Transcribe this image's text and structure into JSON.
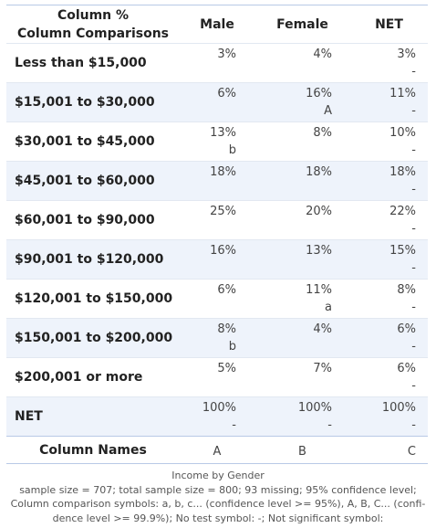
{
  "header": {
    "corner_line1": "Column %",
    "corner_line2": "Column Comparisons",
    "col_male": "Male",
    "col_female": "Female",
    "col_net": "NET"
  },
  "rows": [
    {
      "label": "Less than $15,000",
      "male": "3%",
      "male_sig": "",
      "female": "4%",
      "female_sig": "",
      "net": "3%",
      "net_sig": "-"
    },
    {
      "label": "$15,001 to $30,000",
      "male": "6%",
      "male_sig": "",
      "female": "16%",
      "female_sig": "A",
      "net": "11%",
      "net_sig": "-"
    },
    {
      "label": "$30,001 to $45,000",
      "male": "13%",
      "male_sig": "b",
      "female": "8%",
      "female_sig": "",
      "net": "10%",
      "net_sig": "-"
    },
    {
      "label": "$45,001 to $60,000",
      "male": "18%",
      "male_sig": "",
      "female": "18%",
      "female_sig": "",
      "net": "18%",
      "net_sig": "-"
    },
    {
      "label": "$60,001 to $90,000",
      "male": "25%",
      "male_sig": "",
      "female": "20%",
      "female_sig": "",
      "net": "22%",
      "net_sig": "-"
    },
    {
      "label": "$90,001 to $120,000",
      "male": "16%",
      "male_sig": "",
      "female": "13%",
      "female_sig": "",
      "net": "15%",
      "net_sig": "-"
    },
    {
      "label": "$120,001 to $150,000",
      "male": "6%",
      "male_sig": "",
      "female": "11%",
      "female_sig": "a",
      "net": "8%",
      "net_sig": "-"
    },
    {
      "label": "$150,001 to $200,000",
      "male": "8%",
      "male_sig": "b",
      "female": "4%",
      "female_sig": "",
      "net": "6%",
      "net_sig": "-"
    },
    {
      "label": "$200,001 or more",
      "male": "5%",
      "male_sig": "",
      "female": "7%",
      "female_sig": "",
      "net": "6%",
      "net_sig": "-"
    },
    {
      "label": "NET",
      "male": "100%",
      "male_sig": "-",
      "female": "100%",
      "female_sig": "-",
      "net": "100%",
      "net_sig": "-"
    }
  ],
  "column_names": {
    "label": "Column Names",
    "male": "A",
    "female": "B",
    "net": "C"
  },
  "footer": {
    "title": "Income by Gender",
    "line1": "sample size = 707; total sample size = 800; 93 missing; 95% confidence level;",
    "line2": "Column comparison symbols: a, b, c... (confidence level >= 95%), A, B, C... (confi-",
    "line3": "dence level >= 99.9%); No test symbol: -; Not significant symbol:"
  }
}
